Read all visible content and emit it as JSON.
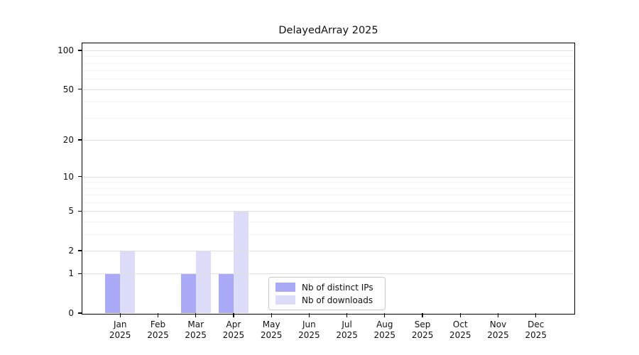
{
  "chart_data": {
    "type": "bar",
    "title": "DelayedArray 2025",
    "x_tick_labels": [
      "Jan\n2025",
      "Feb\n2025",
      "Mar\n2025",
      "Apr\n2025",
      "May\n2025",
      "Jun\n2025",
      "Jul\n2025",
      "Aug\n2025",
      "Sep\n2025",
      "Oct\n2025",
      "Nov\n2025",
      "Dec\n2025"
    ],
    "series": [
      {
        "name": "Nb of distinct IPs",
        "color": "#a9a9f5",
        "values": [
          1,
          0,
          1,
          1,
          0,
          0,
          0,
          0,
          0,
          0,
          0,
          0
        ]
      },
      {
        "name": "Nb of downloads",
        "color": "#dcdcf8",
        "values": [
          2,
          0,
          2,
          5,
          0,
          0,
          0,
          0,
          0,
          0,
          0,
          0
        ]
      }
    ],
    "y_axis": {
      "scale": "log1p",
      "tick_values": [
        0,
        1,
        2,
        5,
        10,
        20,
        50,
        100
      ],
      "minor_grid_values": [
        3,
        4,
        6,
        7,
        8,
        9,
        30,
        40,
        60,
        70,
        80,
        90
      ]
    },
    "legend": {
      "position": "lower center"
    },
    "colors": {
      "major_grid": "#e0e0e0",
      "minor_grid": "#f3f3f3",
      "axis_frame": "#000000",
      "text": "#111111"
    }
  }
}
